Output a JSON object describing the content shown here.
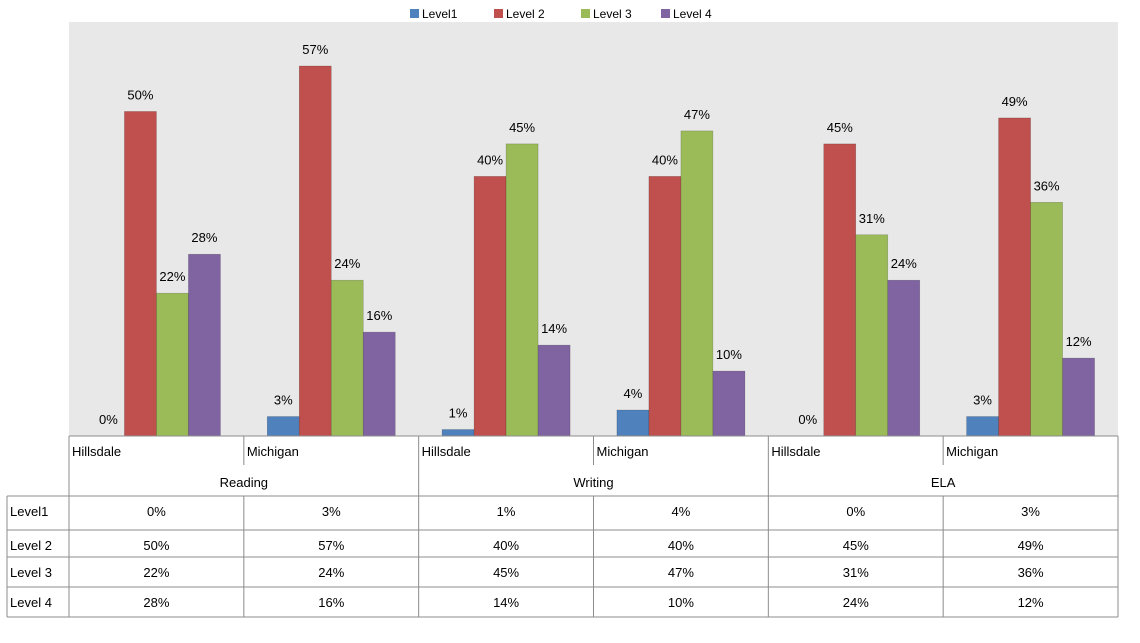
{
  "chart_data": {
    "type": "bar",
    "series": [
      {
        "name": "Level1",
        "color": "#4F81BD",
        "values": [
          0,
          3,
          1,
          4,
          0,
          3
        ]
      },
      {
        "name": "Level 2",
        "color": "#C0504D",
        "values": [
          50,
          57,
          40,
          40,
          45,
          49
        ]
      },
      {
        "name": "Level 3",
        "color": "#9BBB59",
        "values": [
          22,
          24,
          45,
          47,
          31,
          36
        ]
      },
      {
        "name": "Level 4",
        "color": "#8064A2",
        "values": [
          28,
          16,
          14,
          10,
          24,
          12
        ]
      }
    ],
    "categories": [
      "Hillsdale",
      "Michigan",
      "Hillsdale",
      "Michigan",
      "Hillsdale",
      "Michigan"
    ],
    "groups": [
      "Reading",
      "Writing",
      "ELA"
    ],
    "value_format": "percent",
    "ylim": [
      0,
      57
    ],
    "legend_position": "top",
    "grid": false,
    "plot_background": "#E8E8E8",
    "data_table": {
      "rows": [
        {
          "label": "Level1",
          "values": [
            "0%",
            "3%",
            "1%",
            "4%",
            "0%",
            "3%"
          ]
        },
        {
          "label": "Level 2",
          "values": [
            "50%",
            "57%",
            "40%",
            "40%",
            "45%",
            "49%"
          ]
        },
        {
          "label": "Level 3",
          "values": [
            "22%",
            "24%",
            "45%",
            "47%",
            "31%",
            "36%"
          ]
        },
        {
          "label": "Level 4",
          "values": [
            "28%",
            "16%",
            "14%",
            "10%",
            "24%",
            "12%"
          ]
        }
      ]
    }
  }
}
